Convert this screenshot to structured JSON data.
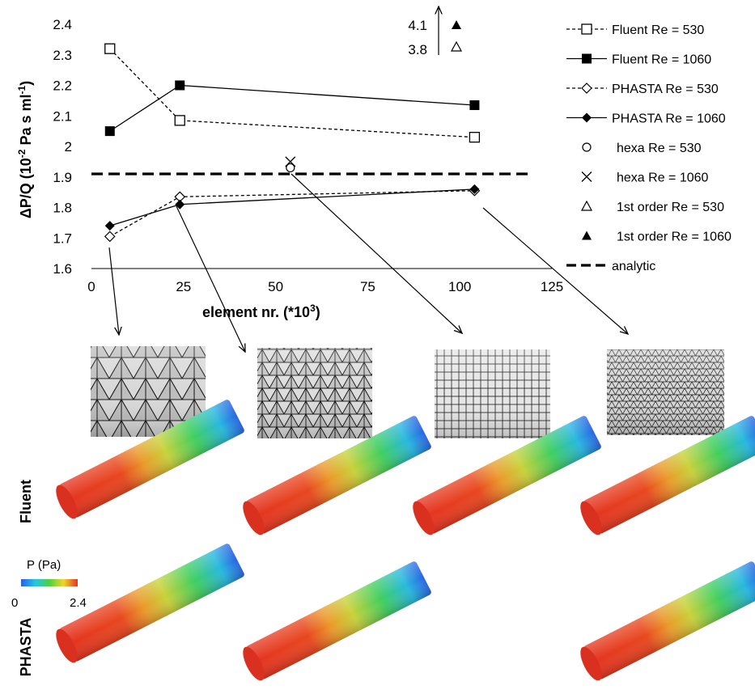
{
  "chart_data": {
    "type": "line",
    "xlabel": "element nr. (*10",
    "xlabel_sup": "3",
    "xlabel_end": ")",
    "ylabel": "ΔP/Q (10",
    "ylabel_sup": "-2",
    "ylabel_mid": " Pa s ml",
    "ylabel_sup2": "-1",
    "ylabel_end": ")",
    "xlim": [
      0,
      125
    ],
    "ylim": [
      1.6,
      2.4
    ],
    "xticks": [
      "0",
      "25",
      "50",
      "75",
      "100",
      "125"
    ],
    "yticks": [
      "1.6",
      "1.7",
      "1.8",
      "1.9",
      "2",
      "2.1",
      "2.2",
      "2.3",
      "2.4"
    ],
    "legend_position": "right",
    "series": [
      {
        "name": "Fluent Re = 530",
        "line": "dashed",
        "marker": "square-open",
        "points": [
          [
            5,
            2.32
          ],
          [
            24,
            2.085
          ],
          [
            104,
            2.03
          ]
        ]
      },
      {
        "name": "Fluent Re = 1060",
        "line": "solid",
        "marker": "square-filled",
        "points": [
          [
            5,
            2.05
          ],
          [
            24,
            2.2
          ],
          [
            104,
            2.135
          ]
        ]
      },
      {
        "name": "PHASTA Re = 530",
        "line": "dashed",
        "marker": "diamond-open",
        "points": [
          [
            5,
            1.705
          ],
          [
            24,
            1.835
          ],
          [
            104,
            1.855
          ]
        ]
      },
      {
        "name": "PHASTA Re = 1060",
        "line": "solid",
        "marker": "diamond-filled",
        "points": [
          [
            5,
            1.74
          ],
          [
            24,
            1.81
          ],
          [
            104,
            1.86
          ]
        ]
      },
      {
        "name": "hexa Re = 530",
        "line": "none",
        "marker": "circle-open",
        "points": [
          [
            54,
            1.93
          ]
        ]
      },
      {
        "name": "hexa Re = 1060",
        "line": "none",
        "marker": "x",
        "points": [
          [
            54,
            1.95
          ]
        ]
      },
      {
        "name": "1st order Re = 530",
        "line": "none",
        "marker": "triangle-open",
        "points": []
      },
      {
        "name": "1st order Re = 1060",
        "line": "none",
        "marker": "triangle-filled",
        "points": []
      },
      {
        "name": "analytic",
        "line": "thick-dashed",
        "marker": "none",
        "y": 1.91
      }
    ],
    "offscale_annotation": {
      "values": [
        "4.1",
        "3.8"
      ],
      "markers": [
        "triangle-filled",
        "triangle-open"
      ]
    }
  },
  "colorbar": {
    "label": "P (Pa)",
    "min": "0",
    "max": "2.4"
  },
  "row_labels": {
    "fluent": "Fluent",
    "phasta": "PHASTA"
  },
  "colors": {
    "high": "#e83323",
    "mid": "#f2d230",
    "low": "#2f6ee6"
  }
}
